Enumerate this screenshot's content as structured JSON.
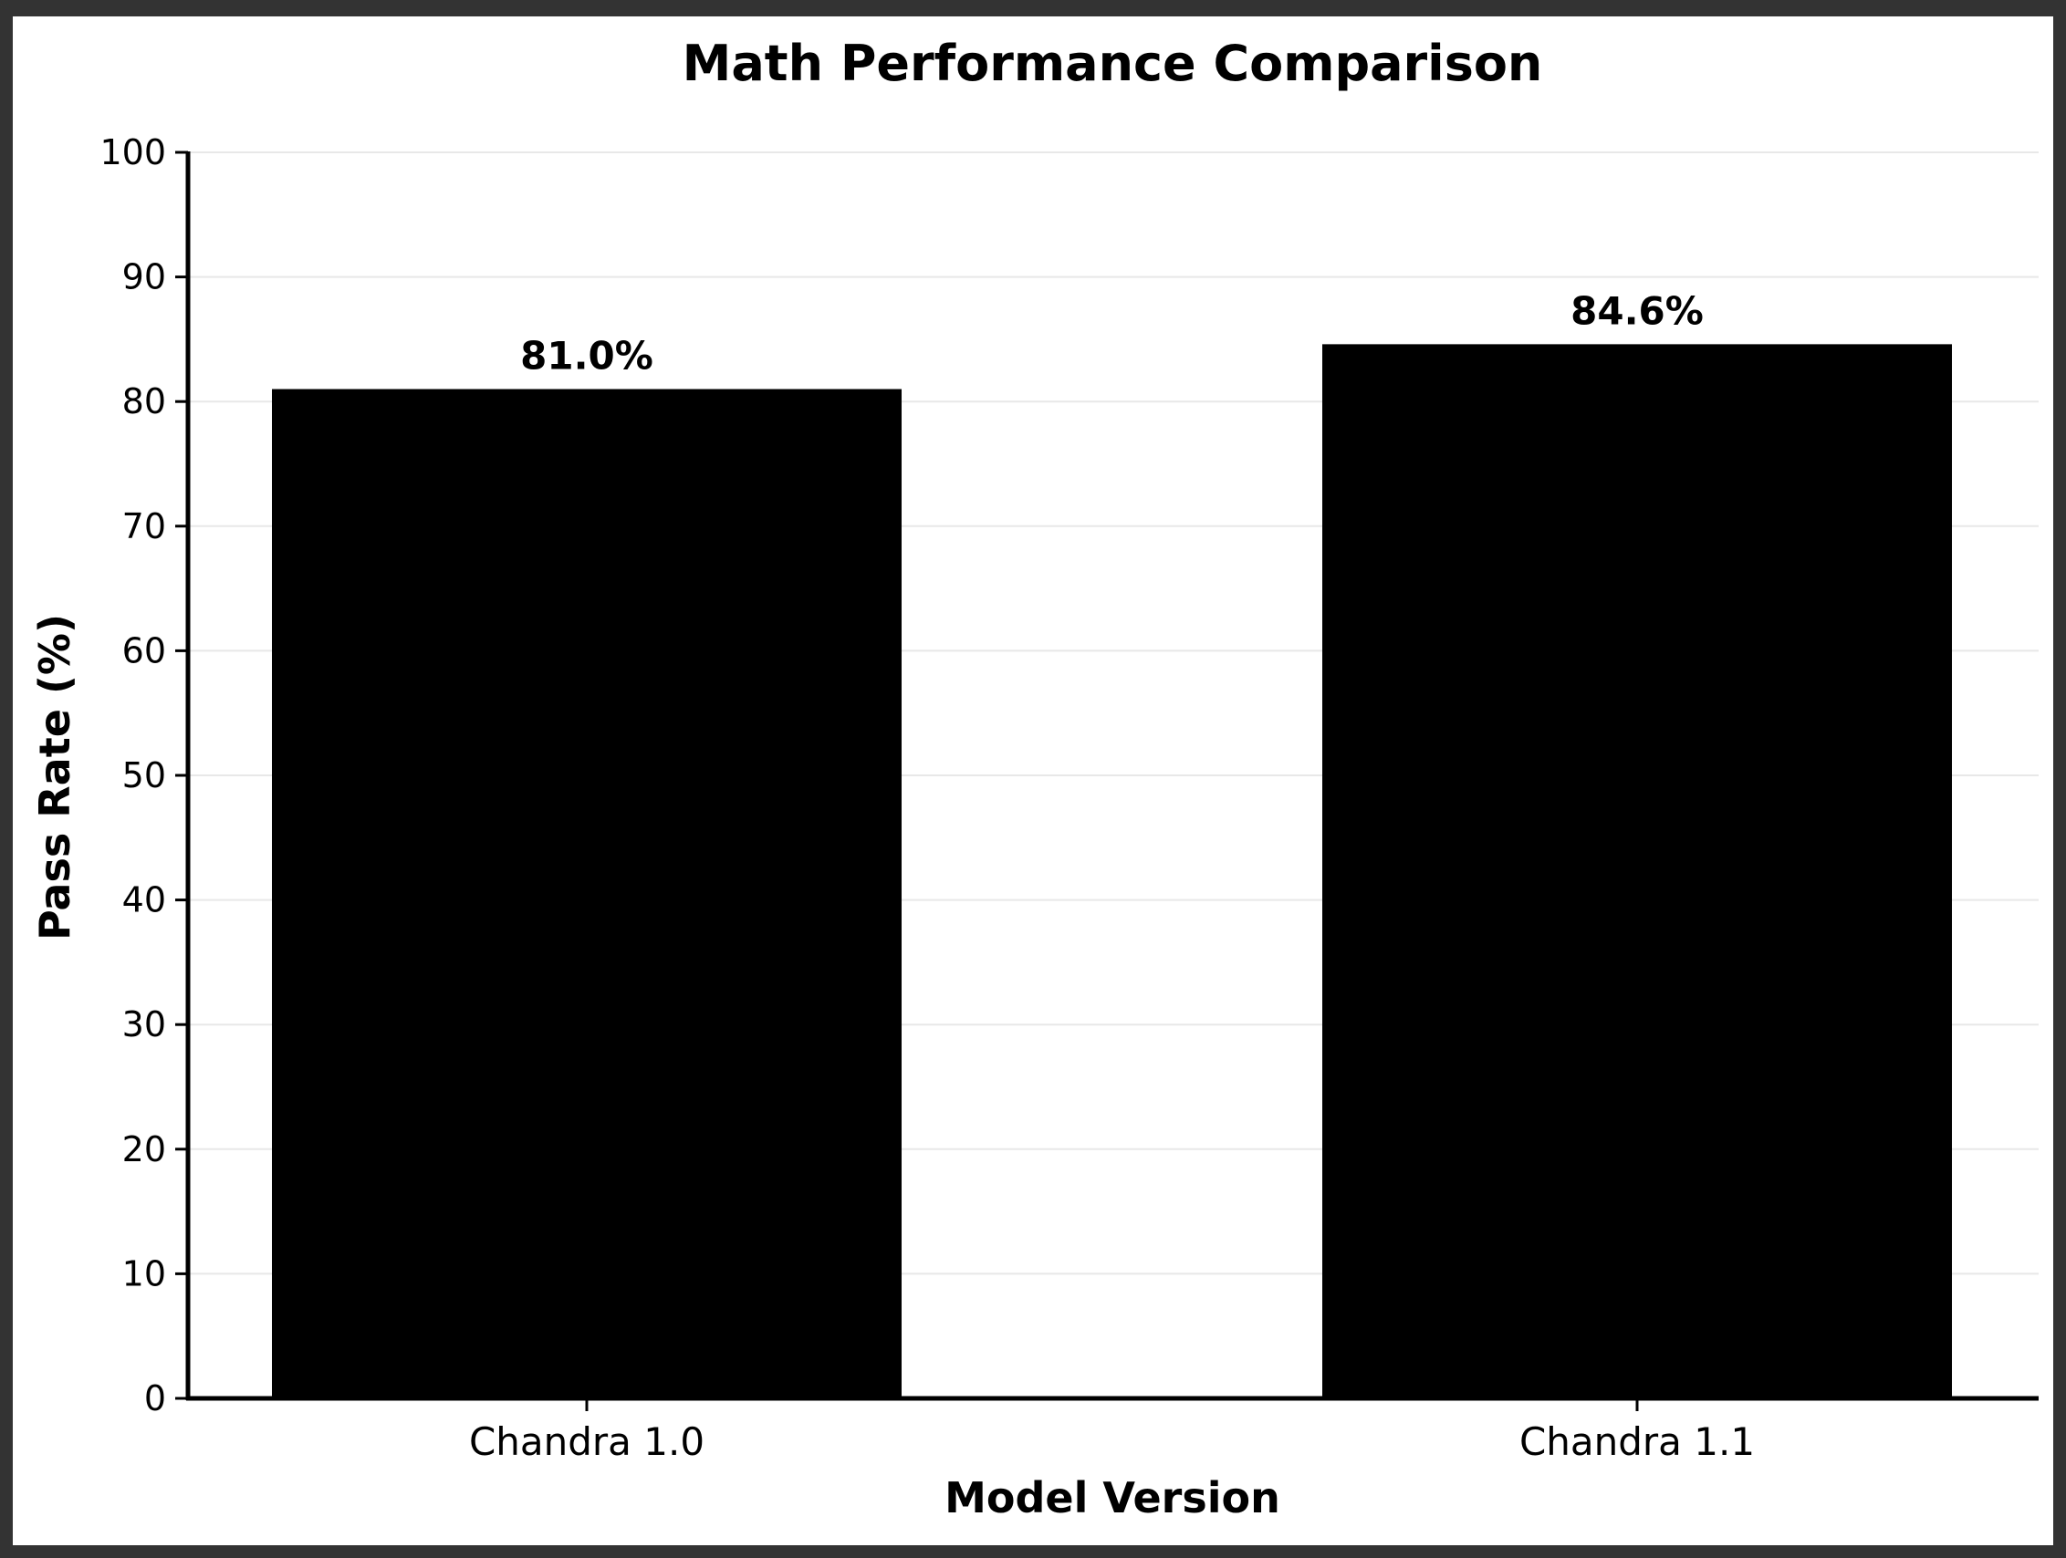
{
  "chart_data": {
    "type": "bar",
    "title": "Math Performance Comparison",
    "xlabel": "Model Version",
    "ylabel": "Pass Rate (%)",
    "categories": [
      "Chandra 1.0",
      "Chandra 1.1"
    ],
    "values": [
      81.0,
      84.6
    ],
    "value_labels": [
      "81.0%",
      "84.6%"
    ],
    "ylim": [
      0,
      100
    ],
    "yticks": [
      0,
      10,
      20,
      30,
      40,
      50,
      60,
      70,
      80,
      90,
      100
    ],
    "grid": "horizontal",
    "bar_color": "#000000",
    "grid_color": "#e8e8e8"
  }
}
